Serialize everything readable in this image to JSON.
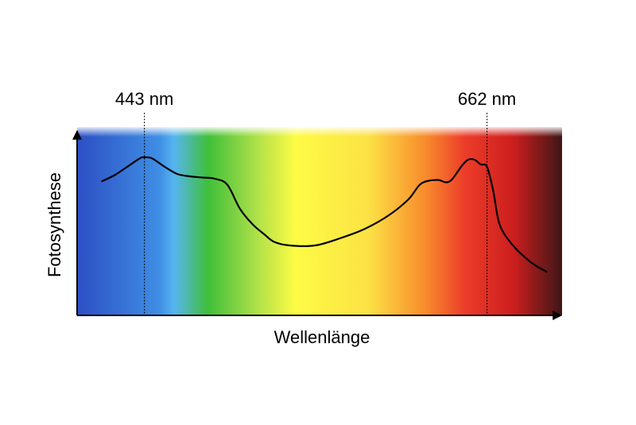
{
  "chart_data": {
    "type": "line",
    "title": "",
    "xlabel": "Wellenlänge",
    "ylabel": "Fotosynthese",
    "x_unit": "nm",
    "xlim": [
      400,
      710
    ],
    "ylim": [
      0,
      1
    ],
    "grid": false,
    "legend": "none",
    "background": "visible-spectrum gradient (violet-blue to dark red)",
    "annotations": [
      {
        "label": "443 nm",
        "x": 443
      },
      {
        "label": "662 nm",
        "x": 662
      }
    ],
    "series": [
      {
        "x": [
          416,
          424,
          432,
          440,
          443,
          448,
          456,
          464,
          472,
          480,
          488,
          496,
          504,
          512,
          520,
          526,
          536,
          552,
          568,
          584,
          600,
          612,
          620,
          630,
          636,
          640,
          646,
          650,
          654,
          658,
          662,
          666,
          670,
          678,
          690,
          700
        ],
        "y": [
          0.78,
          0.83,
          0.9,
          0.97,
          0.98,
          0.97,
          0.9,
          0.84,
          0.82,
          0.81,
          0.8,
          0.75,
          0.55,
          0.42,
          0.33,
          0.27,
          0.24,
          0.24,
          0.3,
          0.38,
          0.5,
          0.63,
          0.76,
          0.79,
          0.77,
          0.8,
          0.91,
          0.96,
          0.96,
          0.92,
          0.9,
          0.7,
          0.42,
          0.25,
          0.1,
          0.02
        ]
      }
    ]
  },
  "colors": {
    "curve": "#000000",
    "axes": "#000000",
    "spectrum": [
      "#2d4fc4",
      "#3f8ee4",
      "#56b5f0",
      "#3fbf3a",
      "#aee048",
      "#fdfb45",
      "#fce245",
      "#f88a2c",
      "#ec3c2a",
      "#cc1e1e",
      "#3e1616"
    ]
  }
}
